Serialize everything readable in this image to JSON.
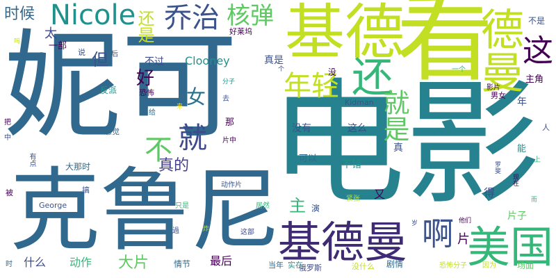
{
  "words": [
    {
      "key": "nike",
      "text": "妮可",
      "color": "#31688e"
    },
    {
      "key": "dianying",
      "text": "电影",
      "color": "#26828e"
    },
    {
      "key": "kelunni",
      "text": "克鲁尼",
      "color": "#31688e"
    },
    {
      "key": "kan",
      "text": "看",
      "color": "#c2df23"
    },
    {
      "key": "jide",
      "text": "基德",
      "color": "#c2df23"
    },
    {
      "key": "jideman_big",
      "text": "基德曼",
      "color": "#3f2a74"
    },
    {
      "key": "meiguo",
      "text": "美国",
      "color": "#35b779"
    },
    {
      "key": "deman_v",
      "text": "德曼",
      "color": "#c2df23"
    },
    {
      "key": "qiaozhi",
      "text": "乔治",
      "color": "#3b528b"
    },
    {
      "key": "nicole",
      "text": "Nicole",
      "color": "#21918c"
    },
    {
      "key": "hedan",
      "text": "核弹",
      "color": "#5ec962"
    },
    {
      "key": "huan",
      "text": "还",
      "color": "#35b779"
    },
    {
      "key": "zhe",
      "text": "这",
      "color": "#440154"
    },
    {
      "key": "nianqing",
      "text": "年轻",
      "color": "#c2df23"
    },
    {
      "key": "a",
      "text": "啊",
      "color": "#3b528b"
    },
    {
      "key": "jiu",
      "text": "就",
      "color": "#3e4a89"
    },
    {
      "key": "jiushi",
      "text": "就是",
      "color": "#5ec962"
    },
    {
      "key": "bu",
      "text": "不",
      "color": "#5ec962"
    },
    {
      "key": "zhende",
      "text": "真的",
      "color": "#433e85"
    },
    {
      "key": "nv",
      "text": "女",
      "color": "#2c728e"
    },
    {
      "key": "hao",
      "text": "好",
      "color": "#440154"
    },
    {
      "key": "dan",
      "text": "但",
      "color": "#3b528b"
    },
    {
      "key": "shihou",
      "text": "时候",
      "color": "#31688e"
    },
    {
      "key": "haishi",
      "text": "还是",
      "color": "#c2df23"
    },
    {
      "key": "tai",
      "text": "太",
      "color": "#3e4a89"
    },
    {
      "key": "clooney",
      "text": "Clooney",
      "color": "#21918c"
    },
    {
      "key": "buguo",
      "text": "不过",
      "color": "#3e4a89"
    },
    {
      "key": "zhen_shi",
      "text": "真是",
      "color": "#3b528b"
    },
    {
      "key": "haolaiwu",
      "text": "好莱坞",
      "color": "#440154"
    },
    {
      "key": "bushi",
      "text": "不是",
      "color": "#3b528b"
    },
    {
      "key": "zhujue",
      "text": "主角",
      "color": "#440154"
    },
    {
      "key": "yige",
      "text": "一个",
      "color": "#35b779"
    },
    {
      "key": "yingpian",
      "text": "影片",
      "color": "#440154"
    },
    {
      "key": "nannv",
      "text": "男女",
      "color": "#440154"
    },
    {
      "key": "nian",
      "text": "年",
      "color": "#3b528b"
    },
    {
      "key": "meiyou",
      "text": "没有",
      "color": "#3b528b"
    },
    {
      "key": "zheme",
      "text": "这么",
      "color": "#3e4a89"
    },
    {
      "key": "keyi",
      "text": "可以",
      "color": "#31688e"
    },
    {
      "key": "bucuo",
      "text": "不错",
      "color": "#21918c"
    },
    {
      "key": "zhen",
      "text": "真",
      "color": "#3b528b"
    },
    {
      "key": "zhu",
      "text": "主",
      "color": "#35b779"
    },
    {
      "key": "you",
      "text": "又",
      "color": "#440154"
    },
    {
      "key": "yan",
      "text": "演",
      "color": "#3b528b"
    },
    {
      "key": "jinzhang",
      "text": "紧张",
      "color": "#c2df23"
    },
    {
      "key": "dongzuopian",
      "text": "动作片",
      "color": "#3b528b"
    },
    {
      "key": "dapian",
      "text": "大片",
      "color": "#5ec962"
    },
    {
      "key": "dongzuo",
      "text": "动作",
      "color": "#35b779"
    },
    {
      "key": "shenme",
      "text": "什么",
      "color": "#3e4a89"
    },
    {
      "key": "zuihou",
      "text": "最后",
      "color": "#440154"
    },
    {
      "key": "qingjie",
      "text": "情节",
      "color": "#31688e"
    },
    {
      "key": "juqing",
      "text": "剧情",
      "color": "#31688e"
    },
    {
      "key": "pian",
      "text": "片",
      "color": "#440154"
    },
    {
      "key": "pianzi",
      "text": "片子",
      "color": "#5ec962"
    },
    {
      "key": "de",
      "text": "得",
      "color": "#3e4a89"
    },
    {
      "key": "changmian",
      "text": "场面",
      "color": "#5ec962"
    },
    {
      "key": "george",
      "text": "George",
      "color": "#3b528b"
    },
    {
      "key": "kidman",
      "text": "Kidman",
      "color": "#3b528b"
    },
    {
      "key": "eluosi",
      "text": "俄罗斯",
      "color": "#3e4a89"
    },
    {
      "key": "dangnian",
      "text": "当年",
      "color": "#31688e"
    },
    {
      "key": "shizai",
      "text": "实在",
      "color": "#21918c"
    },
    {
      "key": "meishenme",
      "text": "没什么",
      "color": "#c2df23"
    },
    {
      "key": "kongbufenzi",
      "text": "恐怖分子",
      "color": "#c2df23"
    },
    {
      "key": "yinwei",
      "text": "因为",
      "color": "#c2df23"
    },
    {
      "key": "yibu",
      "text": "一部",
      "color": "#440154"
    },
    {
      "key": "shuo",
      "text": "说",
      "color": "#3b528b"
    },
    {
      "key": "hou",
      "text": "后",
      "color": "#3b528b"
    },
    {
      "key": "fanpai",
      "text": "反派",
      "color": "#21918c"
    },
    {
      "key": "kongbu",
      "text": "恐怖",
      "color": "#440154"
    },
    {
      "key": "gei",
      "text": "给",
      "color": "#2c728e"
    },
    {
      "key": "lai",
      "text": "来",
      "color": "#fde725"
    },
    {
      "key": "ganjue",
      "text": "感觉",
      "color": "#31688e"
    },
    {
      "key": "na",
      "text": "那",
      "color": "#440154"
    },
    {
      "key": "fenzi",
      "text": "分子",
      "color": "#21918c"
    },
    {
      "key": "qu",
      "text": "去",
      "color": "#3b528b"
    },
    {
      "key": "meiv",
      "text": "没",
      "color": "#440154"
    },
    {
      "key": "ge",
      "text": "个",
      "color": "#3e4a89"
    },
    {
      "key": "pianzhong",
      "text": "片中",
      "color": "#440154"
    },
    {
      "key": "luofei",
      "text": "罗斐",
      "color": "#3b528b"
    },
    {
      "key": "neng",
      "text": "能",
      "color": "#21918c"
    },
    {
      "key": "shang",
      "text": "上",
      "color": "#35b779"
    },
    {
      "key": "ren",
      "text": "人",
      "color": "#3b528b"
    },
    {
      "key": "xianzai",
      "text": "现在",
      "color": "#440154"
    },
    {
      "key": "er",
      "text": "而",
      "color": "#35b779"
    },
    {
      "key": "tamen",
      "text": "他们",
      "color": "#440154"
    },
    {
      "key": "sui",
      "text": "岁",
      "color": "#3b528b"
    },
    {
      "key": "juran",
      "text": "居然",
      "color": "#35b779"
    },
    {
      "key": "zhebu",
      "text": "这部",
      "color": "#3e4a89"
    },
    {
      "key": "zha",
      "text": "炸",
      "color": "#c2df23"
    },
    {
      "key": "guo",
      "text": "過",
      "color": "#3b528b"
    },
    {
      "key": "zhishi",
      "text": "只是",
      "color": "#35b779"
    },
    {
      "key": "gao",
      "text": "搞",
      "color": "#3b528b"
    },
    {
      "key": "dana",
      "text": "大那时",
      "color": "#31688e"
    },
    {
      "key": "bei",
      "text": "被",
      "color": "#440154"
    },
    {
      "key": "youdian",
      "text": "有点",
      "color": "#3b528b"
    },
    {
      "key": "zhong",
      "text": "中",
      "color": "#3b528b"
    },
    {
      "key": "ba",
      "text": "把",
      "color": "#440154"
    },
    {
      "key": "ma",
      "text": "吗",
      "color": "#c2df23"
    },
    {
      "key": "shi",
      "text": "时",
      "color": "#31688e"
    }
  ]
}
